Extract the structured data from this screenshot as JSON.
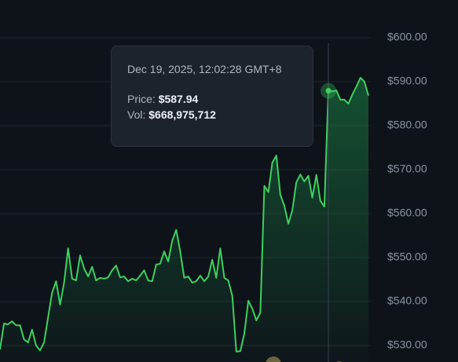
{
  "chart_data": {
    "type": "area",
    "color": "#3ecf5f",
    "values": [
      529.1,
      535,
      534.8,
      535.5,
      534.6,
      534.6,
      531.4,
      530.7,
      533.6,
      530,
      528.9,
      530.7,
      536.4,
      542,
      544.6,
      539.3,
      544.3,
      552.1,
      545.2,
      544.8,
      550.5,
      547.5,
      545.7,
      547.9,
      544.8,
      545.4,
      545.2,
      545.5,
      547.1,
      548.2,
      545.5,
      545.7,
      544.6,
      545.2,
      544.8,
      545.9,
      547.1,
      544.8,
      544.6,
      548.4,
      548.6,
      551.4,
      549.1,
      553.8,
      556.3,
      551.4,
      545.4,
      545.7,
      544.3,
      544.6,
      545.9,
      544.6,
      545.7,
      549.5,
      545.4,
      552.1,
      545.4,
      544.8,
      541.3,
      528.6,
      528.7,
      532.7,
      540.2,
      538.4,
      535.7,
      537.5,
      566.3,
      564.9,
      571.6,
      573.2,
      564.3,
      561.8,
      557.7,
      560.7,
      567.1,
      568.9,
      567.3,
      568.6,
      563.6,
      568.8,
      562.9,
      561.6,
      587.94,
      587.8,
      588,
      585.9,
      585.9,
      585,
      587.1,
      588.9,
      590.9,
      590,
      586.8
    ],
    "ylim": [
      526.25,
      608.57
    ],
    "yticks": [
      {
        "value": 530,
        "label": "$530.00"
      },
      {
        "value": 540,
        "label": "$540.00"
      },
      {
        "value": 550,
        "label": "$550.00"
      },
      {
        "value": 560,
        "label": "$560.00"
      },
      {
        "value": 570,
        "label": "$570.00"
      },
      {
        "value": 580,
        "label": "$580.00"
      },
      {
        "value": 590,
        "label": "$590.00"
      },
      {
        "value": 600,
        "label": "$600.00"
      }
    ],
    "grid": true,
    "tooltip": {
      "date": "Dec 19, 2025, 12:02:28 GMT+8",
      "price_label": "Price:",
      "price": {
        "value": 587.94,
        "label": "$587.94"
      },
      "vol_label": "Vol:",
      "vol": "$668,975,712"
    }
  }
}
